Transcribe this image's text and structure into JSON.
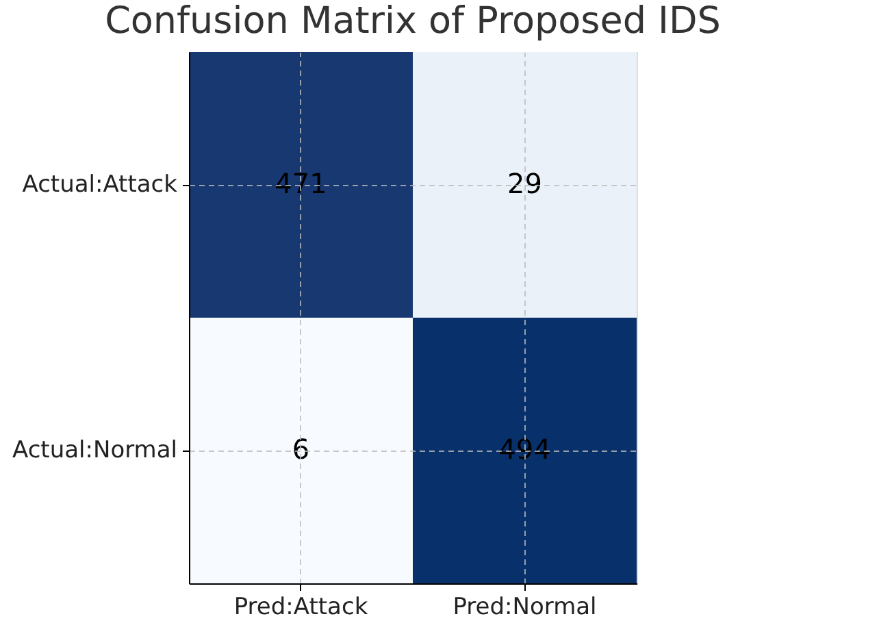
{
  "chart_data": {
    "type": "heatmap",
    "title": "Confusion Matrix of Proposed IDS",
    "categories": [
      "Pred:Attack",
      "Pred:Normal"
    ],
    "y_categories": [
      "Actual:Attack",
      "Actual:Normal"
    ],
    "cells": [
      [
        471,
        29
      ],
      [
        6,
        494
      ]
    ],
    "data_labels": true,
    "grid": true
  }
}
